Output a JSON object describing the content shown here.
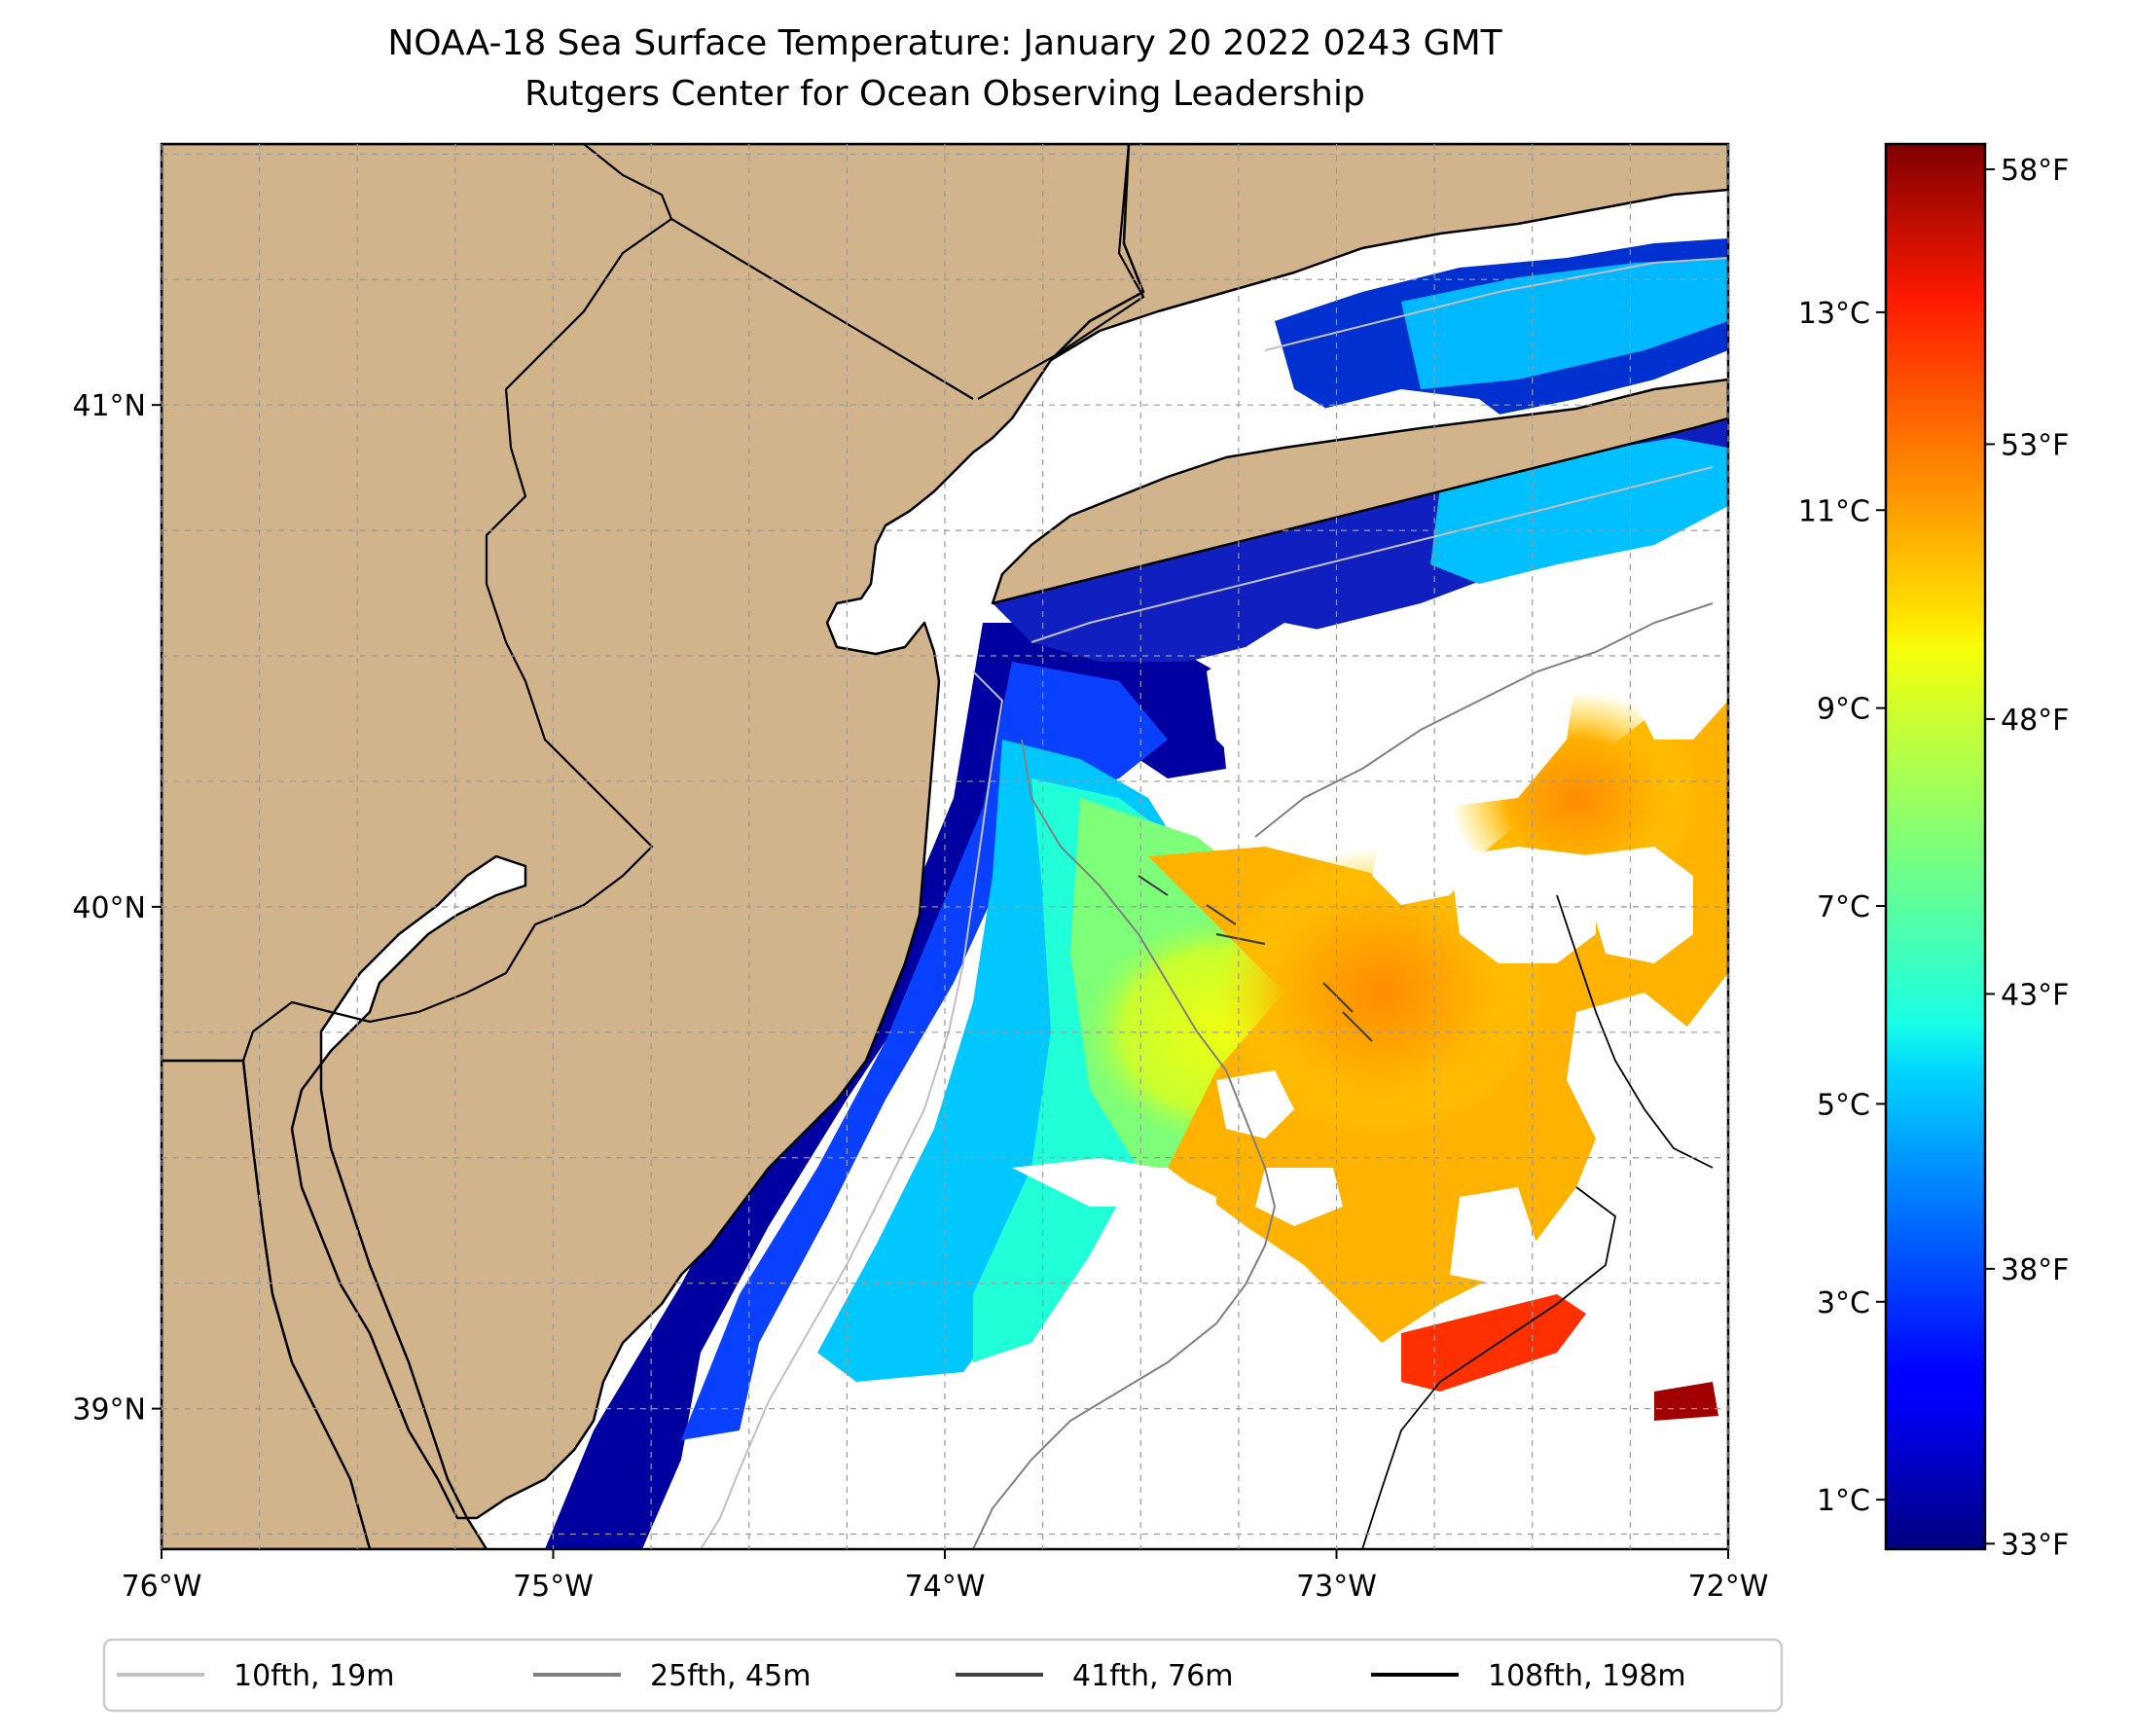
{
  "title": {
    "line1": "NOAA-18 Sea Surface Temperature: January 20 2022 0243 GMT",
    "line2": "Rutgers Center for Ocean Observing Leadership"
  },
  "map": {
    "lon_range": [
      -76.0,
      -72.0
    ],
    "lat_range": [
      38.72,
      41.52
    ],
    "x_ticks": [
      {
        "lon": -76,
        "label": "76°W"
      },
      {
        "lon": -75,
        "label": "75°W"
      },
      {
        "lon": -74,
        "label": "74°W"
      },
      {
        "lon": -73,
        "label": "73°W"
      },
      {
        "lon": -72,
        "label": "72°W"
      }
    ],
    "y_ticks": [
      {
        "lat": 41,
        "label": "41°N"
      },
      {
        "lat": 40,
        "label": "40°N"
      },
      {
        "lat": 39,
        "label": "39°N"
      }
    ],
    "grid": true,
    "land_color": "#d2b48c",
    "no_data_color": "#ffffff"
  },
  "colorbar": {
    "colormap": "jet",
    "range_c": [
      0.5,
      14.7
    ],
    "celsius_ticks": [
      {
        "value": 1,
        "label": "1°C"
      },
      {
        "value": 3,
        "label": "3°C"
      },
      {
        "value": 5,
        "label": "5°C"
      },
      {
        "value": 7,
        "label": "7°C"
      },
      {
        "value": 9,
        "label": "9°C"
      },
      {
        "value": 11,
        "label": "11°C"
      },
      {
        "value": 13,
        "label": "13°C"
      }
    ],
    "fahrenheit_ticks": [
      {
        "value": 33,
        "label": "33°F"
      },
      {
        "value": 38,
        "label": "38°F"
      },
      {
        "value": 43,
        "label": "43°F"
      },
      {
        "value": 48,
        "label": "48°F"
      },
      {
        "value": 53,
        "label": "53°F"
      },
      {
        "value": 58,
        "label": "58°F"
      }
    ]
  },
  "legend": {
    "placement": "below-map",
    "items": [
      {
        "label": "10fth, 19m",
        "color": "#c0c0c0"
      },
      {
        "label": "25fth, 45m",
        "color": "#808080"
      },
      {
        "label": "41fth, 76m",
        "color": "#404040"
      },
      {
        "label": "108fth, 198m",
        "color": "#000000"
      }
    ]
  }
}
